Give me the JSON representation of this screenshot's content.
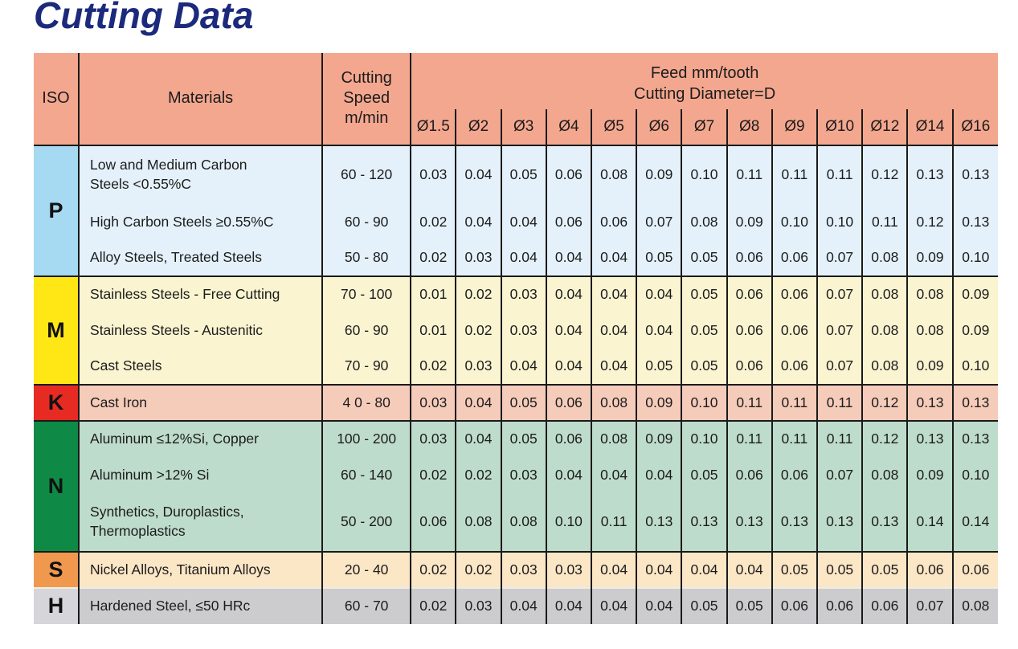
{
  "page": {
    "title": "Cutting Data"
  },
  "colors": {
    "title": "#1b2a7c",
    "header_bg": "#f4a78f",
    "grid": "#1a1a1a"
  },
  "table": {
    "headers": {
      "iso": "ISO",
      "materials": "Materials",
      "cutting_speed": "Cutting\nSpeed\nm/min",
      "feed_title": "Feed mm/tooth\nCutting Diameter=D",
      "diameters": [
        "Ø1.5",
        "Ø2",
        "Ø3",
        "Ø4",
        "Ø5",
        "Ø6",
        "Ø7",
        "Ø8",
        "Ø9",
        "Ø10",
        "Ø12",
        "Ø14",
        "Ø16"
      ]
    },
    "groups": [
      {
        "iso": "P",
        "iso_bg": "#a6d9f2",
        "row_bg": "#e4f1fa",
        "rows": [
          {
            "material": "Low and Medium Carbon\nSteels <0.55%C",
            "speed": "60 - 120",
            "feeds": [
              "0.03",
              "0.04",
              "0.05",
              "0.06",
              "0.08",
              "0.09",
              "0.10",
              "0.11",
              "0.11",
              "0.11",
              "0.12",
              "0.13",
              "0.13"
            ]
          },
          {
            "material": "High Carbon Steels ≥0.55%C",
            "speed": "60 - 90",
            "feeds": [
              "0.02",
              "0.04",
              "0.04",
              "0.06",
              "0.06",
              "0.07",
              "0.08",
              "0.09",
              "0.10",
              "0.10",
              "0.11",
              "0.12",
              "0.13"
            ]
          },
          {
            "material": "Alloy Steels, Treated Steels",
            "speed": "50 - 80",
            "feeds": [
              "0.02",
              "0.03",
              "0.04",
              "0.04",
              "0.04",
              "0.05",
              "0.05",
              "0.06",
              "0.06",
              "0.07",
              "0.08",
              "0.09",
              "0.10"
            ]
          }
        ]
      },
      {
        "iso": "M",
        "iso_bg": "#ffe716",
        "row_bg": "#faf4d1",
        "rows": [
          {
            "material": "Stainless Steels - Free Cutting",
            "speed": "70 - 100",
            "feeds": [
              "0.01",
              "0.02",
              "0.03",
              "0.04",
              "0.04",
              "0.04",
              "0.05",
              "0.06",
              "0.06",
              "0.07",
              "0.08",
              "0.08",
              "0.09"
            ]
          },
          {
            "material": "Stainless Steels - Austenitic",
            "speed": "60 - 90",
            "feeds": [
              "0.01",
              "0.02",
              "0.03",
              "0.04",
              "0.04",
              "0.04",
              "0.05",
              "0.06",
              "0.06",
              "0.07",
              "0.08",
              "0.08",
              "0.09"
            ]
          },
          {
            "material": "Cast Steels",
            "speed": "70 - 90",
            "feeds": [
              "0.02",
              "0.03",
              "0.04",
              "0.04",
              "0.04",
              "0.05",
              "0.05",
              "0.06",
              "0.06",
              "0.07",
              "0.08",
              "0.09",
              "0.10"
            ]
          }
        ]
      },
      {
        "iso": "K",
        "iso_bg": "#e72b23",
        "row_bg": "#f5cbba",
        "rows": [
          {
            "material": "Cast Iron",
            "speed": "4 0 - 80",
            "feeds": [
              "0.03",
              "0.04",
              "0.05",
              "0.06",
              "0.08",
              "0.09",
              "0.10",
              "0.11",
              "0.11",
              "0.11",
              "0.12",
              "0.13",
              "0.13"
            ]
          }
        ]
      },
      {
        "iso": "N",
        "iso_bg": "#0e8a46",
        "row_bg": "#bedccb",
        "rows": [
          {
            "material": "Aluminum ≤12%Si, Copper",
            "speed": "100 - 200",
            "feeds": [
              "0.03",
              "0.04",
              "0.05",
              "0.06",
              "0.08",
              "0.09",
              "0.10",
              "0.11",
              "0.11",
              "0.11",
              "0.12",
              "0.13",
              "0.13"
            ]
          },
          {
            "material": "Aluminum >12% Si",
            "speed": "60 - 140",
            "feeds": [
              "0.02",
              "0.02",
              "0.03",
              "0.04",
              "0.04",
              "0.04",
              "0.05",
              "0.06",
              "0.06",
              "0.07",
              "0.08",
              "0.09",
              "0.10"
            ]
          },
          {
            "material": "Synthetics, Duroplastics,\nThermoplastics",
            "speed": "50 - 200",
            "feeds": [
              "0.06",
              "0.08",
              "0.08",
              "0.10",
              "0.11",
              "0.13",
              "0.13",
              "0.13",
              "0.13",
              "0.13",
              "0.13",
              "0.14",
              "0.14"
            ]
          }
        ]
      },
      {
        "iso": "S",
        "iso_bg": "#f1984f",
        "row_bg": "#fbe6c6",
        "rows": [
          {
            "material": "Nickel Alloys, Titanium Alloys",
            "speed": "20 - 40",
            "feeds": [
              "0.02",
              "0.02",
              "0.03",
              "0.03",
              "0.04",
              "0.04",
              "0.04",
              "0.04",
              "0.05",
              "0.05",
              "0.05",
              "0.06",
              "0.06"
            ]
          }
        ]
      },
      {
        "iso": "H",
        "iso_bg": "#d6d6da",
        "row_bg": "#cccccf",
        "rows": [
          {
            "material": "Hardened Steel, ≤50 HRc",
            "speed": "60 - 70",
            "feeds": [
              "0.02",
              "0.03",
              "0.04",
              "0.04",
              "0.04",
              "0.04",
              "0.05",
              "0.05",
              "0.06",
              "0.06",
              "0.06",
              "0.07",
              "0.08"
            ]
          }
        ]
      }
    ]
  }
}
